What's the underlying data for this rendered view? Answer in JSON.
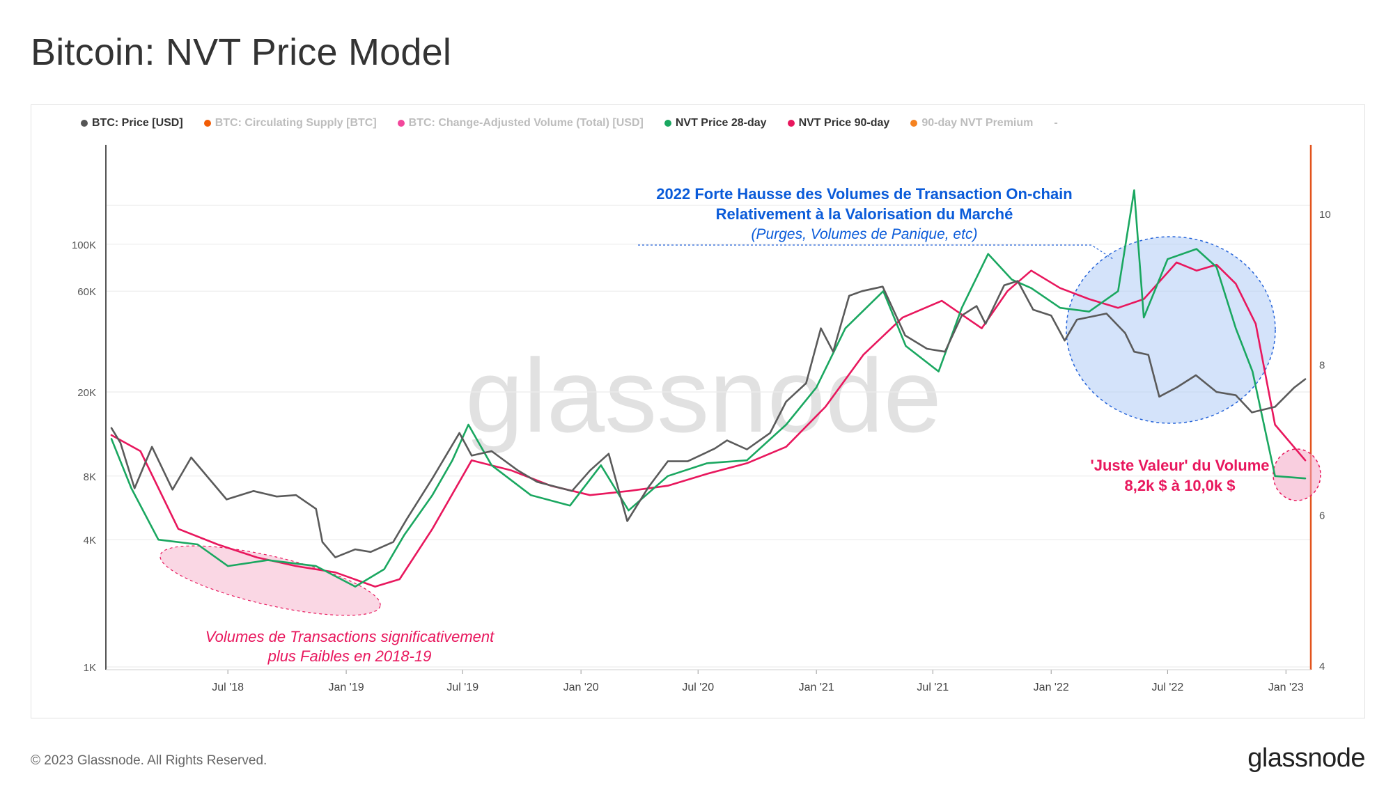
{
  "title": "Bitcoin: NVT Price Model",
  "footer": "© 2023 Glassnode. All Rights Reserved.",
  "brand": "glassnode",
  "watermark": "glassnode",
  "legend": [
    {
      "label": "BTC: Price [USD]",
      "color": "#555555",
      "active": true
    },
    {
      "label": "BTC: Circulating Supply [BTC]",
      "color": "#f25c05",
      "active": false
    },
    {
      "label": "BTC: Change-Adjusted Volume (Total) [USD]",
      "color": "#f2479b",
      "active": false
    },
    {
      "label": "NVT Price 28-day",
      "color": "#1aa760",
      "active": true
    },
    {
      "label": "NVT Price 90-day",
      "color": "#e8175d",
      "active": true
    },
    {
      "label": "90-day NVT Premium",
      "color": "#f58220",
      "active": false
    },
    {
      "label": "-",
      "color": "",
      "active": false
    }
  ],
  "annotations": {
    "top_line1": "2022 Forte Hausse des Volumes de Transaction On-chain",
    "top_line2": "Relativement à la Valorisation du Marché",
    "top_line3": "(Purges, Volumes de Panique, etc)",
    "bottom_line1": "Volumes de Transactions significativement",
    "bottom_line2": "plus Faibles en 2018-19",
    "right_line1": "'Juste Valeur' du Volume",
    "right_line2": "8,2k $ à 10,0k $"
  },
  "colors": {
    "price": "#5a5a5a",
    "nvt28": "#1aa760",
    "nvt90": "#e8175d",
    "blue_annotation": "#0a5bd9",
    "pink_annotation": "#e8175d",
    "right_axis_line": "#e2531c"
  },
  "chart_data": {
    "type": "line",
    "title": "Bitcoin: NVT Price Model",
    "xlabel": "",
    "ylabel": "",
    "y_scale": "log",
    "ylim": [
      1000,
      250000
    ],
    "y_ticks": [
      "1K",
      "4K",
      "8K",
      "20K",
      "60K",
      "100K"
    ],
    "y_tick_values": [
      1000,
      4000,
      8000,
      20000,
      60000,
      100000
    ],
    "y2_ticks": [
      "4",
      "6",
      "8",
      "10"
    ],
    "y2_tick_values": [
      4,
      6,
      8,
      10
    ],
    "y2lim": [
      4,
      11
    ],
    "x_ticks": [
      "Jul '18",
      "Jan '19",
      "Jul '19",
      "Jan '20",
      "Jul '20",
      "Jan '21",
      "Jul '21",
      "Jan '22",
      "Jul '22",
      "Jan '23"
    ],
    "x_tick_dates": [
      "2018-07-01",
      "2019-01-01",
      "2019-07-01",
      "2020-01-01",
      "2020-07-01",
      "2021-01-01",
      "2021-07-01",
      "2022-01-01",
      "2022-07-01",
      "2023-01-01"
    ],
    "xlim": [
      "2018-01-01",
      "2023-01-31"
    ],
    "grid": true,
    "legend_position": "top-left",
    "series": [
      {
        "name": "BTC: Price [USD]",
        "x": [
          "2018-01-01",
          "2018-01-15",
          "2018-02-06",
          "2018-03-05",
          "2018-04-06",
          "2018-05-05",
          "2018-06-29",
          "2018-08-10",
          "2018-09-15",
          "2018-10-15",
          "2018-11-15",
          "2018-11-25",
          "2018-12-15",
          "2019-01-15",
          "2019-02-08",
          "2019-03-15",
          "2019-04-05",
          "2019-05-15",
          "2019-06-26",
          "2019-07-15",
          "2019-08-15",
          "2019-09-25",
          "2019-10-25",
          "2019-12-18",
          "2020-01-15",
          "2020-02-13",
          "2020-03-13",
          "2020-04-15",
          "2020-05-15",
          "2020-06-15",
          "2020-07-27",
          "2020-08-15",
          "2020-09-15",
          "2020-10-21",
          "2020-11-15",
          "2020-12-16",
          "2021-01-08",
          "2021-01-27",
          "2021-02-21",
          "2021-03-13",
          "2021-04-14",
          "2021-05-19",
          "2021-06-22",
          "2021-07-20",
          "2021-08-15",
          "2021-09-07",
          "2021-09-21",
          "2021-10-20",
          "2021-11-10",
          "2021-12-04",
          "2022-01-01",
          "2022-01-22",
          "2022-02-10",
          "2022-03-28",
          "2022-04-26",
          "2022-05-10",
          "2022-06-01",
          "2022-06-18",
          "2022-07-15",
          "2022-08-14",
          "2022-09-15",
          "2022-10-15",
          "2022-11-09",
          "2022-12-15",
          "2023-01-14",
          "2023-01-31"
        ],
        "values": [
          13500,
          11500,
          7000,
          11000,
          6900,
          9800,
          6200,
          6800,
          6400,
          6500,
          5600,
          3900,
          3300,
          3600,
          3500,
          3900,
          5000,
          7800,
          12800,
          10000,
          10500,
          8500,
          7500,
          6800,
          8500,
          10200,
          4900,
          7100,
          9400,
          9400,
          10800,
          11800,
          10700,
          12800,
          18000,
          22000,
          40000,
          31000,
          57000,
          60000,
          63000,
          37000,
          32000,
          31000,
          46000,
          51000,
          42000,
          64000,
          67000,
          49000,
          46000,
          35000,
          44000,
          47000,
          38000,
          31000,
          30000,
          19000,
          21000,
          24000,
          20000,
          19300,
          16000,
          17000,
          21000,
          23000
        ]
      },
      {
        "name": "NVT Price 28-day",
        "x": [
          "2018-01-01",
          "2018-02-01",
          "2018-03-15",
          "2018-05-15",
          "2018-07-01",
          "2018-09-01",
          "2018-11-15",
          "2019-01-15",
          "2019-03-01",
          "2019-04-01",
          "2019-05-15",
          "2019-06-15",
          "2019-07-10",
          "2019-08-15",
          "2019-10-15",
          "2019-12-15",
          "2020-02-01",
          "2020-03-15",
          "2020-05-15",
          "2020-07-15",
          "2020-09-15",
          "2020-11-15",
          "2021-01-01",
          "2021-02-15",
          "2021-04-15",
          "2021-05-20",
          "2021-07-10",
          "2021-08-15",
          "2021-09-25",
          "2021-11-01",
          "2021-12-01",
          "2022-01-15",
          "2022-03-01",
          "2022-04-15",
          "2022-05-10",
          "2022-05-25",
          "2022-07-01",
          "2022-08-15",
          "2022-09-15",
          "2022-10-15",
          "2022-11-10",
          "2022-12-15",
          "2023-01-31"
        ],
        "values": [
          12000,
          7000,
          4000,
          3800,
          3000,
          3200,
          3000,
          2400,
          2900,
          4200,
          6500,
          9500,
          14000,
          9000,
          6500,
          5800,
          9000,
          5500,
          8000,
          9200,
          9500,
          14000,
          21000,
          40000,
          60000,
          33000,
          25000,
          50000,
          90000,
          68000,
          62000,
          50000,
          48000,
          60000,
          180000,
          45000,
          85000,
          95000,
          78000,
          40000,
          25000,
          8000,
          7800
        ]
      },
      {
        "name": "NVT Price 90-day",
        "x": [
          "2018-01-01",
          "2018-02-15",
          "2018-04-15",
          "2018-06-15",
          "2018-08-15",
          "2018-10-15",
          "2018-12-15",
          "2019-02-15",
          "2019-03-25",
          "2019-05-15",
          "2019-07-15",
          "2019-09-15",
          "2019-11-15",
          "2020-01-15",
          "2020-03-15",
          "2020-05-15",
          "2020-07-15",
          "2020-09-15",
          "2020-11-15",
          "2021-01-15",
          "2021-03-15",
          "2021-05-15",
          "2021-07-15",
          "2021-09-15",
          "2021-10-25",
          "2021-12-01",
          "2022-01-15",
          "2022-03-01",
          "2022-04-15",
          "2022-05-25",
          "2022-07-15",
          "2022-08-15",
          "2022-09-15",
          "2022-10-15",
          "2022-11-15",
          "2022-12-15",
          "2023-01-31"
        ],
        "values": [
          12500,
          10500,
          4500,
          3800,
          3300,
          3000,
          2800,
          2400,
          2600,
          4500,
          9500,
          8500,
          7200,
          6500,
          6800,
          7200,
          8200,
          9200,
          11000,
          17000,
          30000,
          45000,
          54000,
          40000,
          60000,
          75000,
          62000,
          55000,
          50000,
          55000,
          82000,
          75000,
          80000,
          65000,
          42000,
          14000,
          9500
        ]
      }
    ]
  }
}
